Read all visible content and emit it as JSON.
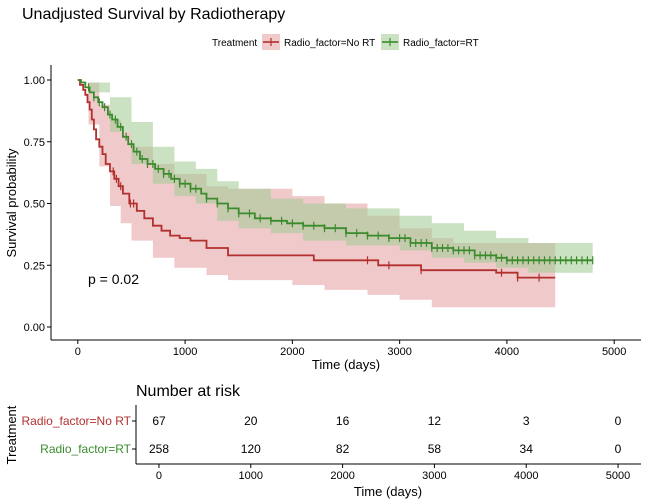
{
  "chart_data": [
    {
      "type": "line",
      "subtype": "kaplan-meier-step",
      "title": "Unadjusted Survival by Radiotherapy",
      "xlabel": "Time (days)",
      "ylabel": "Survival probability",
      "xlim": [
        -250,
        5250
      ],
      "ylim": [
        0,
        1
      ],
      "xticks": [
        0,
        1000,
        2000,
        3000,
        4000,
        5000
      ],
      "xtick_labels": [
        "0",
        "1000",
        "2000",
        "3000",
        "4000",
        "5000"
      ],
      "yticks": [
        0,
        0.25,
        0.5,
        0.75,
        1.0
      ],
      "ytick_labels": [
        "0.00",
        "0.25",
        "0.50",
        "0.75",
        "1.00"
      ],
      "grid": false,
      "legend": {
        "title": "Treatment",
        "position": "top"
      },
      "annotation": "p = 0.02",
      "series": [
        {
          "name": "Radio_factor=No RT",
          "color": "#b2302d",
          "fill": "#e6a5a6",
          "points": [
            [
              0,
              1.0
            ],
            [
              20,
              0.98
            ],
            [
              50,
              0.96
            ],
            [
              70,
              0.94
            ],
            [
              90,
              0.91
            ],
            [
              110,
              0.88
            ],
            [
              130,
              0.84
            ],
            [
              150,
              0.8
            ],
            [
              170,
              0.76
            ],
            [
              200,
              0.73
            ],
            [
              230,
              0.7
            ],
            [
              260,
              0.66
            ],
            [
              300,
              0.63
            ],
            [
              340,
              0.6
            ],
            [
              380,
              0.57
            ],
            [
              420,
              0.54
            ],
            [
              480,
              0.5
            ],
            [
              550,
              0.47
            ],
            [
              620,
              0.44
            ],
            [
              700,
              0.41
            ],
            [
              780,
              0.39
            ],
            [
              860,
              0.37
            ],
            [
              950,
              0.36
            ],
            [
              1050,
              0.35
            ],
            [
              1200,
              0.32
            ],
            [
              1400,
              0.29
            ],
            [
              1800,
              0.29
            ],
            [
              2100,
              0.29
            ],
            [
              2200,
              0.27
            ],
            [
              2600,
              0.27
            ],
            [
              2800,
              0.25
            ],
            [
              3200,
              0.23
            ],
            [
              3600,
              0.23
            ],
            [
              3900,
              0.22
            ],
            [
              4000,
              0.22
            ],
            [
              4100,
              0.2
            ],
            [
              4450,
              0.2
            ]
          ],
          "upper": [
            [
              0,
              1.0
            ],
            [
              100,
              0.99
            ],
            [
              200,
              0.9
            ],
            [
              300,
              0.84
            ],
            [
              400,
              0.79
            ],
            [
              500,
              0.73
            ],
            [
              700,
              0.66
            ],
            [
              900,
              0.62
            ],
            [
              1200,
              0.57
            ],
            [
              1400,
              0.56
            ],
            [
              2000,
              0.53
            ],
            [
              2300,
              0.5
            ],
            [
              2700,
              0.45
            ],
            [
              3000,
              0.4
            ],
            [
              3300,
              0.36
            ],
            [
              3500,
              0.34
            ],
            [
              4450,
              0.34
            ]
          ],
          "lower": [
            [
              0,
              1.0
            ],
            [
              100,
              0.82
            ],
            [
              200,
              0.65
            ],
            [
              300,
              0.49
            ],
            [
              400,
              0.42
            ],
            [
              500,
              0.35
            ],
            [
              700,
              0.28
            ],
            [
              900,
              0.24
            ],
            [
              1200,
              0.21
            ],
            [
              1400,
              0.19
            ],
            [
              2000,
              0.17
            ],
            [
              2300,
              0.15
            ],
            [
              2700,
              0.13
            ],
            [
              3000,
              0.11
            ],
            [
              3300,
              0.08
            ],
            [
              4450,
              0.08
            ]
          ],
          "censored_x": [
            330,
            360,
            400,
            490,
            520,
            2700,
            2900,
            3200,
            3950,
            4100,
            4300
          ]
        },
        {
          "name": "Radio_factor=RT",
          "color": "#3b8b2d",
          "fill": "#a6cd9a",
          "points": [
            [
              0,
              1.0
            ],
            [
              30,
              0.99
            ],
            [
              70,
              0.97
            ],
            [
              110,
              0.95
            ],
            [
              150,
              0.93
            ],
            [
              190,
              0.91
            ],
            [
              230,
              0.89
            ],
            [
              280,
              0.86
            ],
            [
              320,
              0.84
            ],
            [
              370,
              0.81
            ],
            [
              420,
              0.77
            ],
            [
              470,
              0.74
            ],
            [
              520,
              0.71
            ],
            [
              580,
              0.68
            ],
            [
              650,
              0.66
            ],
            [
              720,
              0.64
            ],
            [
              800,
              0.62
            ],
            [
              870,
              0.6
            ],
            [
              950,
              0.58
            ],
            [
              1050,
              0.56
            ],
            [
              1150,
              0.54
            ],
            [
              1200,
              0.52
            ],
            [
              1300,
              0.5
            ],
            [
              1400,
              0.48
            ],
            [
              1500,
              0.46
            ],
            [
              1650,
              0.44
            ],
            [
              1800,
              0.43
            ],
            [
              1950,
              0.42
            ],
            [
              2100,
              0.41
            ],
            [
              2300,
              0.4
            ],
            [
              2500,
              0.38
            ],
            [
              2700,
              0.37
            ],
            [
              2900,
              0.36
            ],
            [
              3100,
              0.34
            ],
            [
              3300,
              0.32
            ],
            [
              3500,
              0.31
            ],
            [
              3700,
              0.29
            ],
            [
              3900,
              0.28
            ],
            [
              4000,
              0.27
            ],
            [
              4200,
              0.27
            ],
            [
              4800,
              0.27
            ]
          ],
          "upper": [
            [
              0,
              1.0
            ],
            [
              100,
              0.99
            ],
            [
              300,
              0.93
            ],
            [
              500,
              0.83
            ],
            [
              700,
              0.73
            ],
            [
              900,
              0.67
            ],
            [
              1100,
              0.64
            ],
            [
              1300,
              0.59
            ],
            [
              1500,
              0.56
            ],
            [
              1800,
              0.52
            ],
            [
              2100,
              0.5
            ],
            [
              2500,
              0.48
            ],
            [
              3000,
              0.45
            ],
            [
              3300,
              0.42
            ],
            [
              3600,
              0.39
            ],
            [
              3900,
              0.36
            ],
            [
              4200,
              0.34
            ],
            [
              4800,
              0.34
            ]
          ],
          "lower": [
            [
              0,
              1.0
            ],
            [
              100,
              0.95
            ],
            [
              300,
              0.79
            ],
            [
              500,
              0.66
            ],
            [
              700,
              0.58
            ],
            [
              900,
              0.53
            ],
            [
              1100,
              0.5
            ],
            [
              1300,
              0.43
            ],
            [
              1500,
              0.4
            ],
            [
              1800,
              0.38
            ],
            [
              2100,
              0.35
            ],
            [
              2500,
              0.33
            ],
            [
              3000,
              0.31
            ],
            [
              3300,
              0.28
            ],
            [
              3600,
              0.26
            ],
            [
              3900,
              0.24
            ],
            [
              4200,
              0.22
            ],
            [
              4800,
              0.22
            ]
          ],
          "censored_x": [
            100,
            150,
            200,
            250,
            300,
            350,
            400,
            450,
            500,
            550,
            600,
            650,
            700,
            750,
            800,
            850,
            900,
            950,
            1000,
            1050,
            1100,
            1200,
            1300,
            1400,
            1500,
            1600,
            1700,
            1800,
            1900,
            2000,
            2100,
            2200,
            2300,
            2400,
            2500,
            2600,
            2700,
            2800,
            2900,
            3000,
            3050,
            3100,
            3150,
            3200,
            3250,
            3300,
            3350,
            3400,
            3450,
            3500,
            3550,
            3600,
            3650,
            3700,
            3750,
            3800,
            3850,
            3900,
            3950,
            4000,
            4050,
            4100,
            4150,
            4200,
            4250,
            4300,
            4350,
            4400,
            4450,
            4500,
            4550,
            4600,
            4650,
            4700,
            4750,
            4800
          ]
        }
      ]
    },
    {
      "type": "table",
      "title": "Number at risk",
      "xlabel": "Time (days)",
      "ylabel": "Treatment",
      "xlim": [
        -250,
        5250
      ],
      "xticks": [
        0,
        1000,
        2000,
        3000,
        4000,
        5000
      ],
      "xtick_labels": [
        "0",
        "1000",
        "2000",
        "3000",
        "4000",
        "5000"
      ],
      "rows": [
        {
          "name": "Radio_factor=No RT",
          "color": "#b2302d",
          "values": [
            "67",
            "20",
            "16",
            "12",
            "3",
            "0"
          ]
        },
        {
          "name": "Radio_factor=RT",
          "color": "#3b8b2d",
          "values": [
            "258",
            "120",
            "82",
            "58",
            "34",
            "0"
          ]
        }
      ]
    }
  ]
}
